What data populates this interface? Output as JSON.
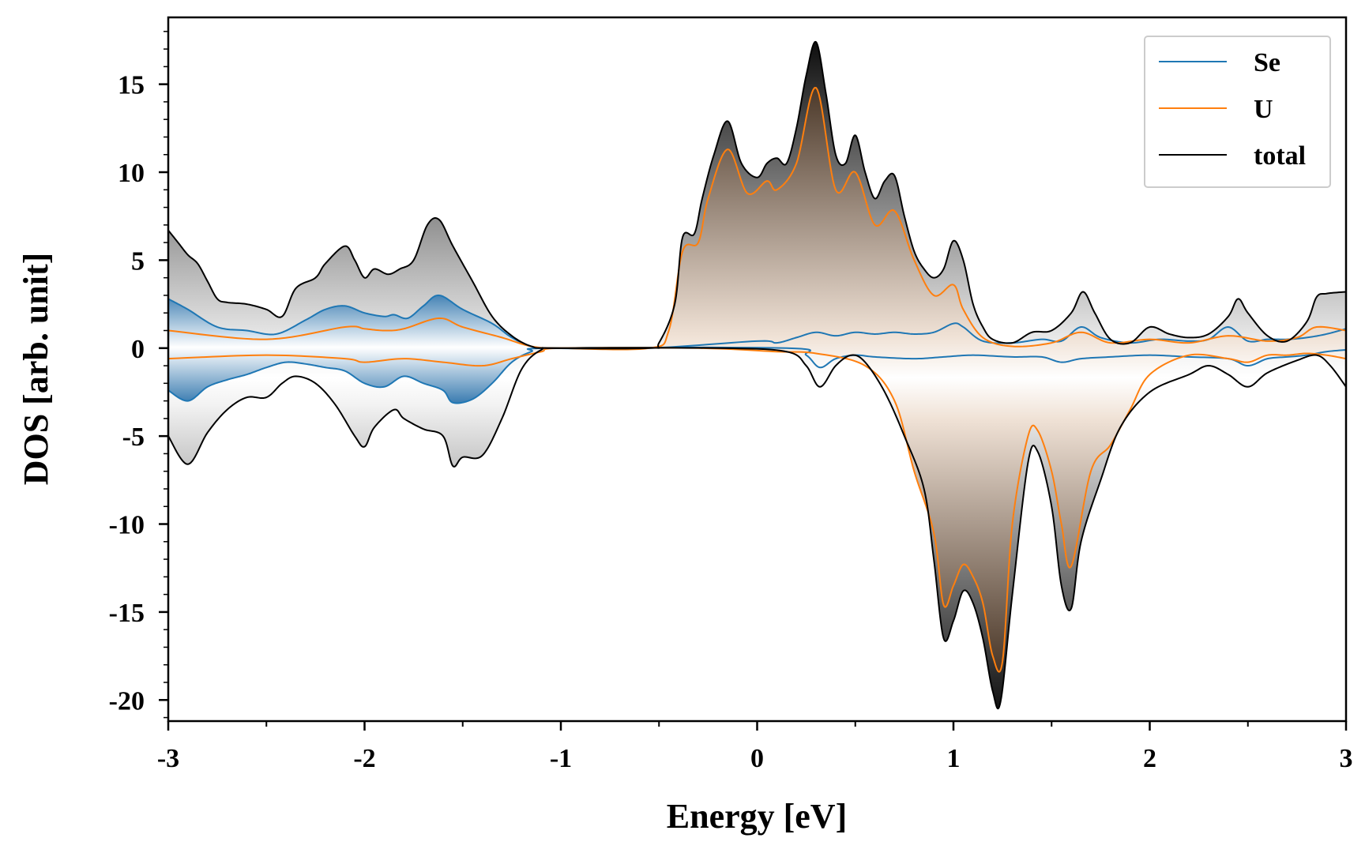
{
  "chart_data": {
    "type": "line",
    "title": "",
    "xlabel": "Energy [eV]",
    "ylabel": "DOS [arb. unit]",
    "xlim": [
      -3,
      3
    ],
    "ylim": [
      -21.2,
      18.8
    ],
    "xticks": [
      -3,
      -2,
      -1,
      0,
      1,
      2,
      3
    ],
    "xtick_labels": [
      "-3",
      "-2",
      "-1",
      "0",
      "1",
      "2",
      "3"
    ],
    "yticks": [
      15,
      10,
      5,
      0,
      -5,
      -10,
      -15,
      -20
    ],
    "ytick_labels": [
      "15",
      "10",
      "5",
      "0",
      "-5",
      "-10",
      "-15",
      "-20"
    ],
    "grid": false,
    "legend_position": "top-right",
    "legend": [
      "Se",
      "U",
      "total"
    ],
    "colors": {
      "Se": "#1f77b4",
      "U": "#ff7f0e",
      "total": "#000000"
    },
    "fills": {
      "total": "grey gradient",
      "Se": "blue gradient (x < -1)",
      "U": "brown gradient (x > -0.5)"
    },
    "series": [
      {
        "name": "Se",
        "x_up": [
          -3,
          -2.9,
          -2.75,
          -2.6,
          -2.45,
          -2.3,
          -2.2,
          -2.1,
          -2.0,
          -1.9,
          -1.85,
          -1.78,
          -1.7,
          -1.62,
          -1.5,
          -1.35,
          -1.25,
          -1.15,
          -1.05,
          -0.55,
          0.0,
          0.1,
          0.2,
          0.3,
          0.4,
          0.5,
          0.6,
          0.7,
          0.8,
          0.9,
          1.0,
          1.05,
          1.15,
          1.3,
          1.45,
          1.55,
          1.65,
          1.75,
          1.9,
          2.05,
          2.2,
          2.3,
          2.4,
          2.5,
          2.6,
          2.7,
          2.8,
          2.9,
          3.0
        ],
        "y_up": [
          2.8,
          2.2,
          1.2,
          1.0,
          0.8,
          1.6,
          2.2,
          2.4,
          2.0,
          1.8,
          1.9,
          1.7,
          2.4,
          3.0,
          2.2,
          1.4,
          0.6,
          0.1,
          0.0,
          0.0,
          0.4,
          0.3,
          0.6,
          0.9,
          0.7,
          0.9,
          0.8,
          0.9,
          0.8,
          0.9,
          1.4,
          1.2,
          0.4,
          0.3,
          0.5,
          0.4,
          1.2,
          0.6,
          0.3,
          0.5,
          0.4,
          0.5,
          1.2,
          0.4,
          0.5,
          0.5,
          0.6,
          0.8,
          1.1
        ],
        "x_down": [
          -3,
          -2.9,
          -2.8,
          -2.7,
          -2.6,
          -2.5,
          -2.4,
          -2.3,
          -2.2,
          -2.1,
          -2.0,
          -1.9,
          -1.8,
          -1.7,
          -1.6,
          -1.55,
          -1.45,
          -1.35,
          -1.25,
          -1.15,
          -1.05,
          0.15,
          0.25,
          0.32,
          0.4,
          0.5,
          0.6,
          0.8,
          0.95,
          1.1,
          1.3,
          1.45,
          1.55,
          1.65,
          1.8,
          2.0,
          2.2,
          2.4,
          2.5,
          2.6,
          2.7,
          2.8,
          2.9,
          3.0
        ],
        "y_down": [
          -2.4,
          -3.0,
          -2.2,
          -1.8,
          -1.5,
          -1.1,
          -0.8,
          -0.9,
          -1.1,
          -1.3,
          -2.0,
          -2.2,
          -1.6,
          -2.0,
          -2.4,
          -3.1,
          -2.9,
          -2.0,
          -0.8,
          -0.2,
          0.0,
          0.0,
          -0.4,
          -1.1,
          -0.6,
          -0.4,
          -0.5,
          -0.6,
          -0.5,
          -0.4,
          -0.5,
          -0.5,
          -0.8,
          -0.6,
          -0.5,
          -0.4,
          -0.5,
          -0.6,
          -1.0,
          -0.6,
          -0.5,
          -0.4,
          -0.2,
          -0.1
        ]
      },
      {
        "name": "U",
        "x_up": [
          -3,
          -2.5,
          -2.1,
          -2.0,
          -1.9,
          -1.8,
          -1.62,
          -1.5,
          -1.3,
          -1.15,
          -1.0,
          -0.55,
          -0.45,
          -0.38,
          -0.3,
          -0.25,
          -0.15,
          -0.05,
          0.05,
          0.1,
          0.2,
          0.3,
          0.4,
          0.5,
          0.6,
          0.7,
          0.8,
          0.9,
          1.0,
          1.05,
          1.15,
          1.3,
          1.5,
          1.65,
          1.8,
          2.0,
          2.2,
          2.4,
          2.6,
          2.75,
          2.85,
          3.0
        ],
        "y_up": [
          1.0,
          0.5,
          1.2,
          1.1,
          1.0,
          1.1,
          1.7,
          1.2,
          0.6,
          0.1,
          0.0,
          0.0,
          1.0,
          5.5,
          6.0,
          8.5,
          11.3,
          8.8,
          9.5,
          9.0,
          10.5,
          14.8,
          9.0,
          10.0,
          7.0,
          7.8,
          5.0,
          3.0,
          3.6,
          2.2,
          0.6,
          0.1,
          0.3,
          0.9,
          0.3,
          0.5,
          0.3,
          0.7,
          0.4,
          0.6,
          1.2,
          1.0
        ],
        "x_down": [
          -3,
          -2.5,
          -2.1,
          -2.0,
          -1.8,
          -1.6,
          -1.4,
          -1.25,
          -1.1,
          -1.0,
          -0.3,
          0.1,
          0.3,
          0.55,
          0.7,
          0.8,
          0.9,
          0.95,
          1.0,
          1.05,
          1.1,
          1.15,
          1.2,
          1.25,
          1.3,
          1.38,
          1.43,
          1.5,
          1.55,
          1.6,
          1.7,
          1.8,
          1.9,
          2.0,
          2.2,
          2.4,
          2.5,
          2.6,
          2.7,
          2.8,
          2.9,
          3.0
        ],
        "y_down": [
          -0.6,
          -0.4,
          -0.6,
          -0.8,
          -0.6,
          -0.8,
          -1.0,
          -0.6,
          -0.2,
          0.0,
          0.0,
          -0.2,
          -0.3,
          -1.0,
          -3.0,
          -7.0,
          -10.5,
          -14.6,
          -13.5,
          -12.3,
          -13.0,
          -14.5,
          -17.5,
          -17.8,
          -10.0,
          -5.0,
          -4.7,
          -7.0,
          -10.0,
          -12.4,
          -7.0,
          -5.5,
          -3.5,
          -1.5,
          -0.4,
          -0.6,
          -0.8,
          -0.4,
          -0.4,
          -0.3,
          -0.4,
          -0.6
        ]
      },
      {
        "name": "total",
        "x_up": [
          -3,
          -2.95,
          -2.9,
          -2.85,
          -2.8,
          -2.75,
          -2.7,
          -2.6,
          -2.5,
          -2.42,
          -2.35,
          -2.25,
          -2.2,
          -2.1,
          -2.05,
          -2.0,
          -1.95,
          -1.88,
          -1.82,
          -1.75,
          -1.68,
          -1.62,
          -1.55,
          -1.45,
          -1.35,
          -1.25,
          -1.15,
          -1.05,
          -0.55,
          -0.5,
          -0.42,
          -0.38,
          -0.32,
          -0.28,
          -0.22,
          -0.15,
          -0.08,
          0.0,
          0.05,
          0.1,
          0.15,
          0.2,
          0.25,
          0.3,
          0.35,
          0.4,
          0.45,
          0.5,
          0.55,
          0.6,
          0.65,
          0.7,
          0.75,
          0.8,
          0.85,
          0.9,
          0.95,
          1.0,
          1.05,
          1.1,
          1.15,
          1.2,
          1.3,
          1.4,
          1.5,
          1.6,
          1.66,
          1.72,
          1.8,
          1.9,
          2.0,
          2.1,
          2.2,
          2.3,
          2.4,
          2.45,
          2.5,
          2.6,
          2.7,
          2.8,
          2.85,
          2.9,
          3.0
        ],
        "y_up": [
          6.7,
          6.0,
          5.3,
          4.8,
          3.8,
          2.8,
          2.6,
          2.5,
          2.2,
          1.8,
          3.4,
          4.0,
          4.8,
          5.8,
          5.0,
          4.0,
          4.5,
          4.2,
          4.5,
          5.0,
          7.0,
          7.3,
          5.8,
          3.8,
          1.8,
          0.7,
          0.1,
          0.0,
          0.0,
          0.3,
          2.5,
          6.3,
          6.5,
          8.5,
          11.0,
          12.9,
          10.5,
          9.7,
          10.5,
          10.8,
          10.5,
          12.5,
          15.5,
          17.4,
          14.5,
          11.0,
          10.5,
          12.1,
          10.0,
          8.5,
          9.5,
          9.8,
          7.5,
          5.5,
          4.5,
          4.0,
          4.5,
          6.1,
          5.0,
          2.5,
          1.2,
          0.5,
          0.3,
          0.9,
          1.0,
          2.0,
          3.2,
          2.0,
          0.5,
          0.3,
          1.2,
          0.8,
          0.6,
          0.8,
          1.8,
          2.8,
          2.0,
          0.7,
          0.4,
          1.5,
          2.9,
          3.1,
          3.2
        ],
        "x_down": [
          -3,
          -2.9,
          -2.8,
          -2.7,
          -2.6,
          -2.5,
          -2.42,
          -2.35,
          -2.25,
          -2.15,
          -2.05,
          -2.0,
          -1.95,
          -1.85,
          -1.8,
          -1.7,
          -1.6,
          -1.55,
          -1.5,
          -1.4,
          -1.3,
          -1.2,
          -1.1,
          -1.0,
          -0.2,
          0.15,
          0.25,
          0.32,
          0.4,
          0.48,
          0.55,
          0.65,
          0.75,
          0.85,
          0.9,
          0.95,
          1.0,
          1.05,
          1.1,
          1.15,
          1.2,
          1.24,
          1.3,
          1.38,
          1.43,
          1.5,
          1.55,
          1.6,
          1.65,
          1.75,
          1.85,
          2.0,
          2.2,
          2.3,
          2.4,
          2.5,
          2.6,
          2.75,
          2.85,
          2.92,
          3.0
        ],
        "y_down": [
          -5.0,
          -6.6,
          -4.8,
          -3.5,
          -2.8,
          -2.8,
          -2.0,
          -1.6,
          -2.0,
          -3.2,
          -5.0,
          -5.6,
          -4.5,
          -3.5,
          -4.0,
          -4.6,
          -5.0,
          -6.7,
          -6.2,
          -6.1,
          -4.0,
          -1.2,
          -0.1,
          0.0,
          0.0,
          -0.2,
          -1.0,
          -2.2,
          -1.0,
          -0.4,
          -0.8,
          -2.5,
          -5.0,
          -8.0,
          -12.0,
          -16.5,
          -15.5,
          -13.8,
          -14.5,
          -16.5,
          -19.5,
          -20.1,
          -14.0,
          -6.5,
          -5.9,
          -9.0,
          -13.5,
          -14.8,
          -11.0,
          -7.5,
          -4.5,
          -2.5,
          -1.5,
          -1.0,
          -1.5,
          -2.2,
          -1.4,
          -0.7,
          -0.4,
          -1.0,
          -2.2
        ]
      }
    ]
  }
}
